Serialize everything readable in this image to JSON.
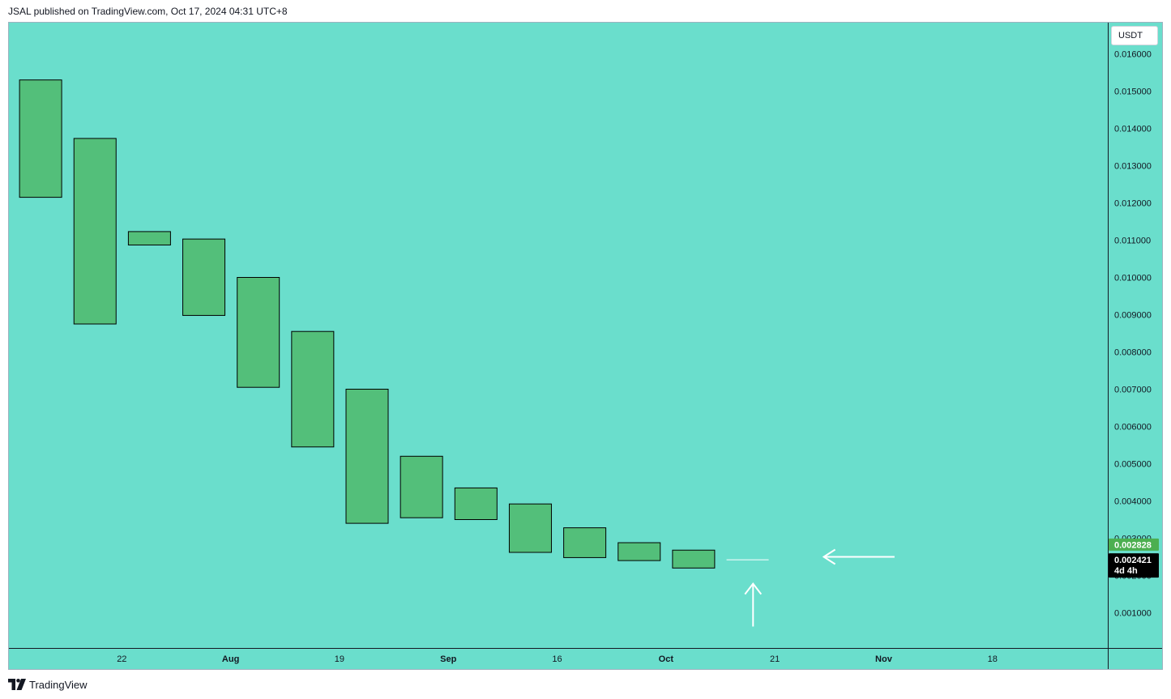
{
  "header": {
    "published_text": "JSAL published on TradingView.com, Oct 17, 2024 04:31 UTC+8"
  },
  "footer": {
    "logo_text": "TradingView",
    "logo_icon": "tradingview-logo-icon"
  },
  "colors": {
    "background": "#6adecc",
    "candle_up": "#53bf7a",
    "candle_border": "#000000",
    "last_price_tag": "#4caf50",
    "countdown_tag": "#000000",
    "annotation": "#ffffff"
  },
  "chart_data": {
    "type": "candlestick",
    "currency": "USDT",
    "y_axis": {
      "min": 0,
      "max": 0.0165,
      "ticks": [
        "0.001000",
        "0.002000",
        "0.003000",
        "0.004000",
        "0.005000",
        "0.006000",
        "0.007000",
        "0.008000",
        "0.009000",
        "0.010000",
        "0.011000",
        "0.012000",
        "0.013000",
        "0.014000",
        "0.015000",
        "0.016000"
      ]
    },
    "x_axis": {
      "ticks": [
        {
          "label": "22",
          "bold": false,
          "pos": 1.5
        },
        {
          "label": "Aug",
          "bold": true,
          "pos": 3.5
        },
        {
          "label": "19",
          "bold": false,
          "pos": 5.5
        },
        {
          "label": "Sep",
          "bold": true,
          "pos": 7.5
        },
        {
          "label": "16",
          "bold": false,
          "pos": 9.5
        },
        {
          "label": "Oct",
          "bold": true,
          "pos": 11.5
        },
        {
          "label": "21",
          "bold": false,
          "pos": 13.5
        },
        {
          "label": "Nov",
          "bold": true,
          "pos": 15.5
        },
        {
          "label": "18",
          "bold": false,
          "pos": 17.5
        }
      ]
    },
    "candles": [
      {
        "open": 0.01215,
        "close": 0.0153
      },
      {
        "open": 0.00875,
        "close": 0.01373
      },
      {
        "open": 0.01087,
        "close": 0.01123
      },
      {
        "open": 0.00898,
        "close": 0.01103
      },
      {
        "open": 0.00705,
        "close": 0.01
      },
      {
        "open": 0.00545,
        "close": 0.00855
      },
      {
        "open": 0.0034,
        "close": 0.007
      },
      {
        "open": 0.00355,
        "close": 0.0052
      },
      {
        "open": 0.0035,
        "close": 0.00435
      },
      {
        "open": 0.00262,
        "close": 0.00392
      },
      {
        "open": 0.00248,
        "close": 0.00328
      },
      {
        "open": 0.0024,
        "close": 0.00288
      },
      {
        "open": 0.0022,
        "close": 0.00268
      },
      {
        "open": 0.00242,
        "close": 0.00242
      }
    ],
    "last_price": {
      "value": 0.002828,
      "label": "0.002828"
    },
    "current_price": {
      "value": 0.002421,
      "label": "0.002421",
      "countdown": "4d 4h"
    },
    "annotations": [
      {
        "type": "arrow",
        "direction": "left",
        "at_price": 0.0025,
        "from_pos": 15.7,
        "to_pos": 14.4
      },
      {
        "type": "arrow",
        "direction": "up",
        "at_pos": 13.1,
        "from_price": 0.00063,
        "to_price": 0.00178
      }
    ]
  }
}
